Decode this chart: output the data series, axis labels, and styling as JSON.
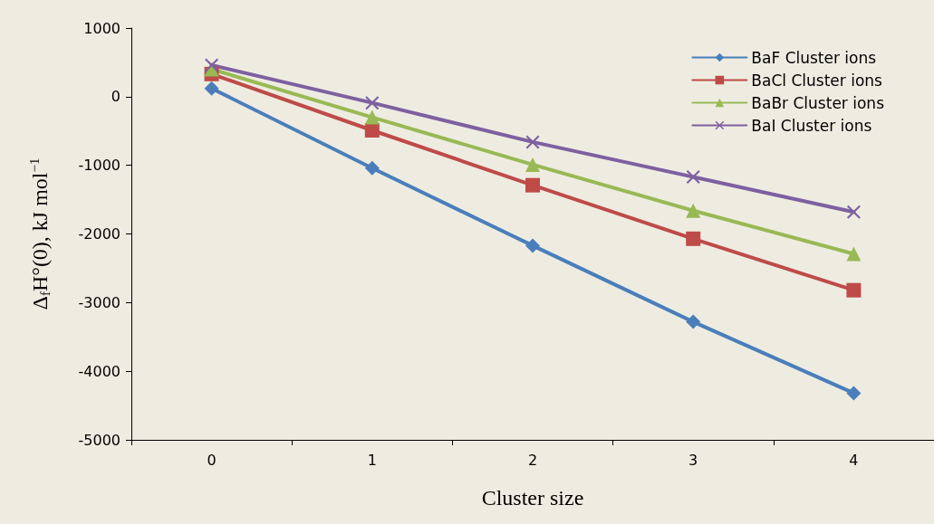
{
  "chart_data": {
    "type": "line",
    "xlabel": "Cluster size",
    "ylabel": "Δ$_{f}$H°(0), kJ mol$^{−1}$",
    "categories": [
      "0",
      "1",
      "2",
      "3",
      "4"
    ],
    "series": [
      {
        "name": "BaF Cluster ions",
        "color": "#4a7ebb",
        "marker": "diamond",
        "values": [
          120,
          -1040,
          -2170,
          -3280,
          -4320
        ]
      },
      {
        "name": "BaCl Cluster ions",
        "color": "#be4b48",
        "marker": "square",
        "values": [
          330,
          -490,
          -1290,
          -2070,
          -2820
        ]
      },
      {
        "name": "BaBr Cluster ions",
        "color": "#98b954",
        "marker": "triangle",
        "values": [
          400,
          -300,
          -990,
          -1660,
          -2290
        ]
      },
      {
        "name": "BaI Cluster ions",
        "color": "#7d60a0",
        "marker": "cross",
        "values": [
          460,
          -90,
          -660,
          -1170,
          -1680
        ]
      }
    ],
    "ylim": [
      -5000,
      1000
    ],
    "yticks": [
      -5000,
      -4000,
      -3000,
      -2000,
      -1000,
      0,
      1000
    ],
    "grid": false,
    "legend": "top right",
    "line_style": "solid"
  }
}
